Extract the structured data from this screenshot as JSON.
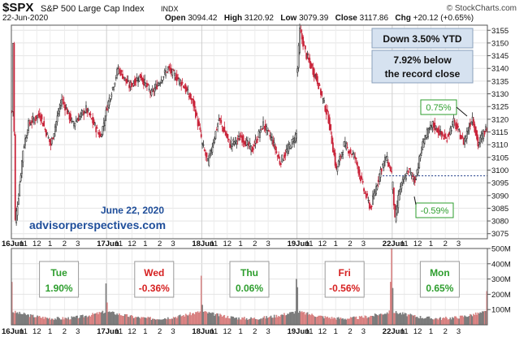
{
  "header": {
    "symbol": "$SPX",
    "name": "S&P 500 Large Cap Index",
    "exchange": "INDX",
    "site": "© StockCharts.com",
    "date": "22-Jun-2020",
    "open_label": "Open",
    "open": "3094.42",
    "high_label": "High",
    "high": "3120.92",
    "low_label": "Low",
    "low": "3079.39",
    "close_label": "Close",
    "close": "3117.86",
    "chg_label": "Chg",
    "chg": "+20.12 (+0.65%)"
  },
  "annotations": {
    "ytd": "Down 3.50% YTD",
    "record_line1": "7.92% below",
    "record_line2": "the record close",
    "pct_high": "0.75%",
    "pct_low": "-0.59%",
    "date_note": "June 22, 2020",
    "site_note": "advisorperspectives.com"
  },
  "day_boxes": [
    {
      "day": "Tue",
      "pct": "1.90%",
      "color": "#2e9e2e"
    },
    {
      "day": "Wed",
      "pct": "-0.36%",
      "color": "#d62020"
    },
    {
      "day": "Thu",
      "pct": "0.06%",
      "color": "#2e9e2e"
    },
    {
      "day": "Fri",
      "pct": "-0.56%",
      "color": "#d62020"
    },
    {
      "day": "Mon",
      "pct": "0.65%",
      "color": "#2e9e2e"
    }
  ],
  "colors": {
    "up": "#333333",
    "down": "#c9243a",
    "vol_up": "#808080",
    "vol_down": "#e08a8a",
    "box_fill": "#d6e2f0",
    "box_border": "#8aa0bb",
    "ref_line": "#1f3c8a",
    "note_text": "#1f4e9a"
  },
  "chart_data": {
    "type": "candlestick",
    "y_ticks": [
      3075,
      3080,
      3085,
      3090,
      3095,
      3100,
      3105,
      3110,
      3115,
      3120,
      3125,
      3130,
      3135,
      3140,
      3145,
      3150,
      3155
    ],
    "ylim": [
      3073,
      3157
    ],
    "reference_line": 3097.74,
    "x_tick_labels": [
      "16Jun",
      "11",
      "12",
      "1",
      "2",
      "3",
      "17Jun",
      "11",
      "12",
      "1",
      "2",
      "3",
      "18Jun",
      "11",
      "12",
      "1",
      "2",
      "3",
      "19Jun",
      "11",
      "12",
      "1",
      "2",
      "3",
      "22Jun",
      "11",
      "12",
      "1",
      "2",
      "3"
    ],
    "volume_ticks": [
      "500M",
      "400M",
      "300M",
      "200M",
      "100M"
    ],
    "volume_ylim": [
      0,
      500
    ],
    "days": [
      {
        "label": "16Jun",
        "path": [
          [
            3123,
            0
          ],
          [
            3150,
            1
          ],
          [
            3080,
            3
          ],
          [
            3090,
            6
          ],
          [
            3108,
            10
          ],
          [
            3118,
            15
          ],
          [
            3122,
            25
          ],
          [
            3110,
            35
          ],
          [
            3128,
            45
          ],
          [
            3118,
            55
          ],
          [
            3124,
            67
          ],
          [
            3113,
            80
          ],
          [
            3124.5,
            86
          ]
        ]
      },
      {
        "label": "17Jun",
        "path": [
          [
            3125,
            0
          ],
          [
            3140,
            10
          ],
          [
            3133,
            20
          ],
          [
            3137,
            30
          ],
          [
            3130,
            40
          ],
          [
            3140,
            55
          ],
          [
            3134,
            68
          ],
          [
            3126,
            78
          ],
          [
            3111,
            86
          ]
        ]
      },
      {
        "label": "18Jun",
        "path": [
          [
            3110,
            0
          ],
          [
            3103,
            5
          ],
          [
            3120,
            15
          ],
          [
            3110,
            25
          ],
          [
            3113,
            35
          ],
          [
            3108,
            45
          ],
          [
            3118,
            55
          ],
          [
            3112,
            63
          ],
          [
            3103,
            70
          ],
          [
            3110,
            80
          ],
          [
            3115,
            86
          ]
        ]
      },
      {
        "label": "19Jun",
        "path": [
          [
            3140,
            0
          ],
          [
            3155,
            2
          ],
          [
            3145,
            8
          ],
          [
            3135,
            18
          ],
          [
            3120,
            28
          ],
          [
            3100,
            35
          ],
          [
            3110,
            42
          ],
          [
            3105,
            52
          ],
          [
            3092,
            60
          ],
          [
            3085,
            66
          ],
          [
            3100,
            75
          ],
          [
            3105,
            80
          ],
          [
            3097.7,
            86
          ]
        ]
      },
      {
        "label": "22Jun",
        "path": [
          [
            3094,
            0
          ],
          [
            3080,
            2
          ],
          [
            3092,
            6
          ],
          [
            3100,
            14
          ],
          [
            3096,
            20
          ],
          [
            3112,
            28
          ],
          [
            3118,
            36
          ],
          [
            3112,
            48
          ],
          [
            3119,
            55
          ],
          [
            3111,
            64
          ],
          [
            3121,
            72
          ],
          [
            3110,
            77
          ],
          [
            3117.9,
            86
          ]
        ]
      }
    ],
    "volume_spikes": [
      {
        "day": 0,
        "bar": 0,
        "value": 280
      },
      {
        "day": 0,
        "bar": 85,
        "value": 270
      },
      {
        "day": 1,
        "bar": 0,
        "value": 145
      },
      {
        "day": 1,
        "bar": 85,
        "value": 320
      },
      {
        "day": 2,
        "bar": 0,
        "value": 130
      },
      {
        "day": 2,
        "bar": 85,
        "value": 300
      },
      {
        "day": 3,
        "bar": 0,
        "value": 245
      },
      {
        "day": 3,
        "bar": 84,
        "value": 280
      },
      {
        "day": 3,
        "bar": 85,
        "value": 540
      },
      {
        "day": 4,
        "bar": 0,
        "value": 240
      },
      {
        "day": 4,
        "bar": 85,
        "value": 220
      }
    ]
  }
}
